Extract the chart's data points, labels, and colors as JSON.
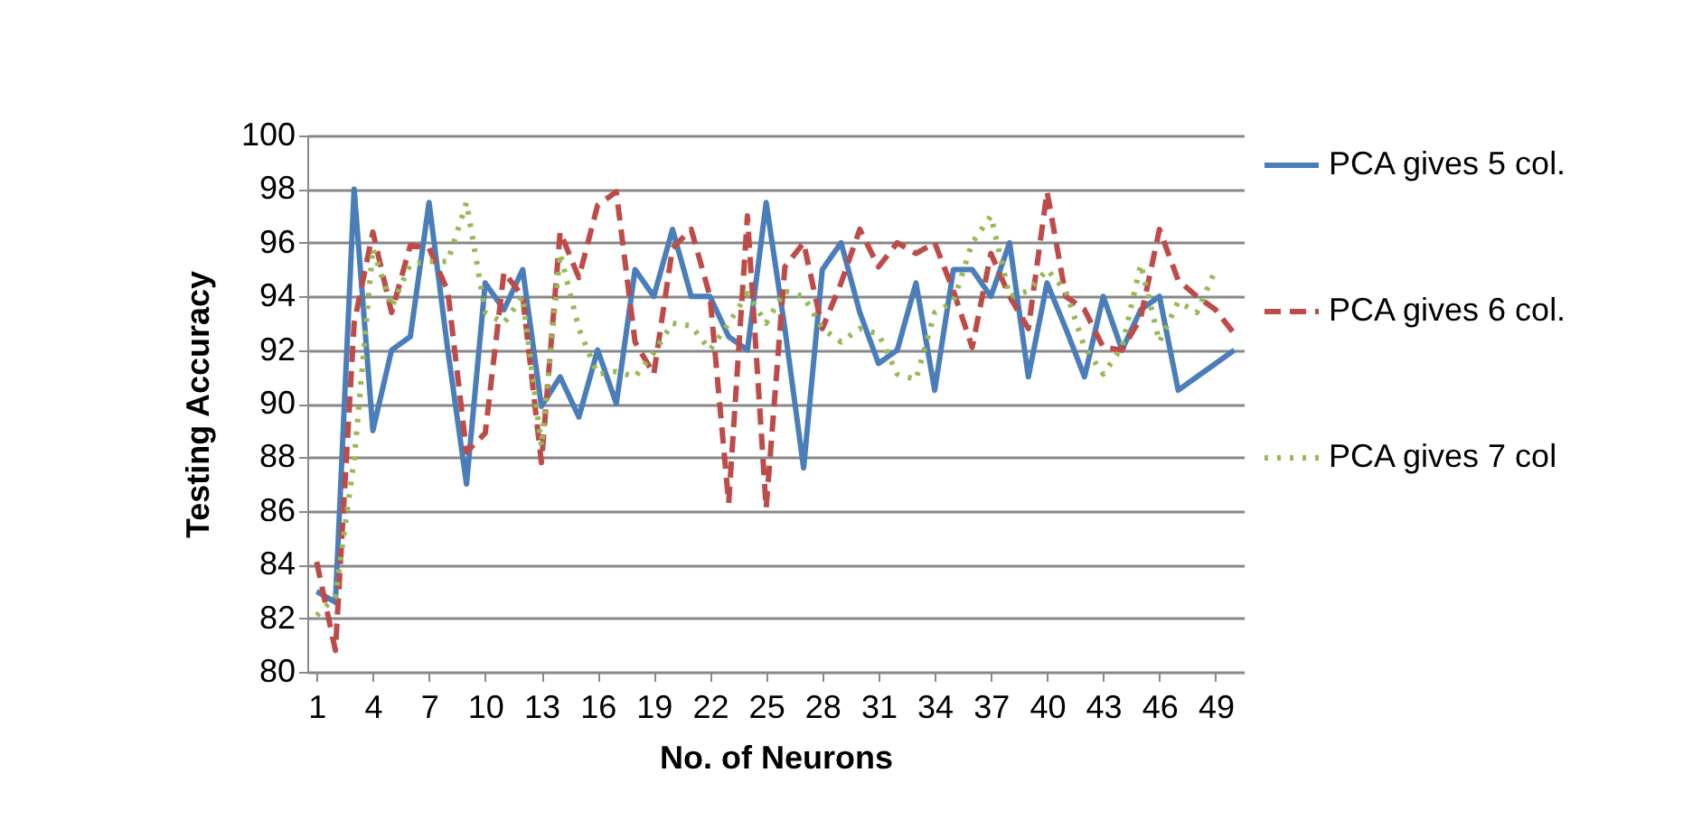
{
  "chart_data": {
    "type": "line",
    "xlabel": "No. of Neurons",
    "ylabel": "Testing Accuracy",
    "x": [
      1,
      2,
      3,
      4,
      5,
      6,
      7,
      8,
      9,
      10,
      11,
      12,
      13,
      14,
      15,
      16,
      17,
      18,
      19,
      20,
      21,
      22,
      23,
      24,
      25,
      26,
      27,
      28,
      29,
      30,
      31,
      32,
      33,
      34,
      35,
      36,
      37,
      38,
      39,
      40,
      41,
      42,
      43,
      44,
      45,
      46,
      47,
      48,
      49,
      50
    ],
    "xlim": [
      0.5,
      50.5
    ],
    "xticks": [
      1,
      4,
      7,
      10,
      13,
      16,
      19,
      22,
      25,
      28,
      31,
      34,
      37,
      40,
      43,
      46,
      49
    ],
    "ylim": [
      80,
      100
    ],
    "yticks": [
      80,
      82,
      84,
      86,
      88,
      90,
      92,
      94,
      96,
      98,
      100
    ],
    "grid": "y",
    "legend": "right",
    "marker": "none",
    "series": [
      {
        "name": "PCA gives 5 col.",
        "color": "#4a7ebb",
        "line_style": "solid",
        "values": [
          83,
          82.6,
          98,
          89,
          92,
          92.5,
          97.5,
          92,
          87,
          94.5,
          93.5,
          95,
          89.9,
          91,
          89.5,
          92,
          90,
          95,
          94,
          96.5,
          94,
          94,
          92.5,
          92,
          97.5,
          92.8,
          87.6,
          95,
          96,
          93.4,
          91.5,
          92,
          94.5,
          90.5,
          95,
          95,
          94,
          96,
          91,
          94.5,
          92.8,
          91,
          94,
          92,
          93.5,
          94,
          90.5,
          91,
          91.5,
          92
        ]
      },
      {
        "name": "PCA gives 6 col.",
        "color": "#be4b48",
        "line_style": "dashed",
        "values": [
          84.1,
          80.8,
          93,
          96.4,
          93.4,
          95.9,
          95.8,
          94.2,
          88.2,
          88.9,
          94.9,
          94,
          87.8,
          96.4,
          94.7,
          97.4,
          97.9,
          92.3,
          91.1,
          95.8,
          96.5,
          94,
          86.3,
          97,
          86.1,
          95.1,
          96,
          92.8,
          94.5,
          96.5,
          95.1,
          96,
          95.6,
          96,
          94.2,
          92.1,
          95.6,
          94,
          92.8,
          97.9,
          94,
          93.5,
          92.1,
          92,
          93.2,
          96.5,
          94.6,
          94,
          93.5,
          92.6
        ]
      },
      {
        "name": "PCA gives 7 col",
        "color": "#98b954",
        "line_style": "dotted",
        "values": [
          82.1,
          82.8,
          87.9,
          95.8,
          93.6,
          95.2,
          95.3,
          95.3,
          97.5,
          93.4,
          93,
          94,
          88.4,
          95.6,
          92.8,
          91.1,
          91.2,
          91,
          91.9,
          93,
          92.9,
          92,
          93,
          94.1,
          93,
          94.2,
          94,
          92.8,
          92.3,
          92.8,
          92.6,
          91.1,
          90.9,
          93.4,
          93.8,
          96,
          97,
          94,
          94.2,
          95,
          94.2,
          92.1,
          91.1,
          92.1,
          95.2,
          92.3,
          93.8,
          93.4,
          95,
          null
        ]
      }
    ]
  }
}
